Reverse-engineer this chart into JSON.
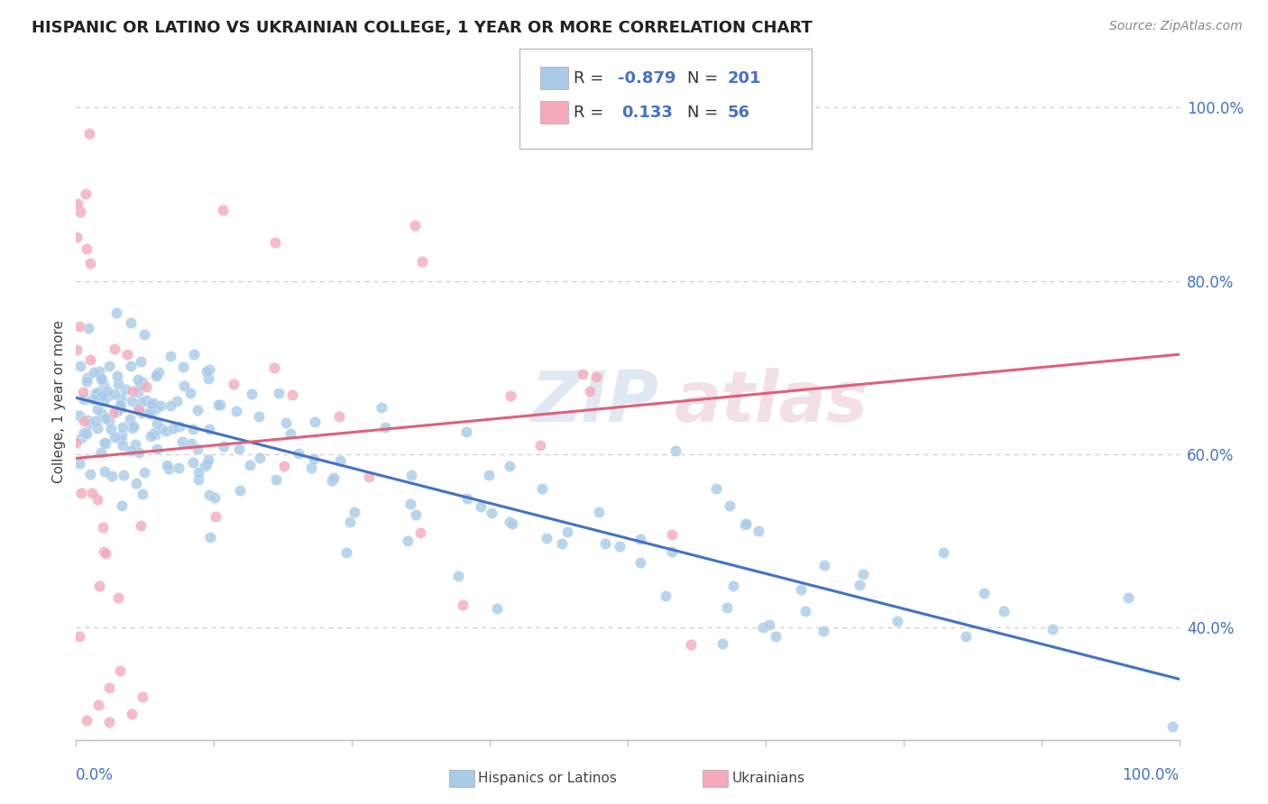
{
  "title": "HISPANIC OR LATINO VS UKRAINIAN COLLEGE, 1 YEAR OR MORE CORRELATION CHART",
  "source": "Source: ZipAtlas.com",
  "ylabel": "College, 1 year or more",
  "ytick_labels": [
    "40.0%",
    "60.0%",
    "80.0%",
    "100.0%"
  ],
  "ytick_values": [
    0.4,
    0.6,
    0.8,
    1.0
  ],
  "legend_blue_r": "-0.879",
  "legend_blue_n": "201",
  "legend_pink_r": "0.133",
  "legend_pink_n": "56",
  "blue_color": "#A8CBE8",
  "pink_color": "#F4AABB",
  "blue_line_color": "#4472C4",
  "pink_line_color": "#E0607A",
  "background_color": "#FFFFFF",
  "xlim": [
    0.0,
    1.0
  ],
  "ylim": [
    0.27,
    1.05
  ],
  "blue_intercept": 0.665,
  "blue_slope": -0.325,
  "pink_intercept": 0.595,
  "pink_slope": 0.12,
  "title_fontsize": 13,
  "source_fontsize": 10,
  "tick_label_fontsize": 12,
  "ylabel_fontsize": 11,
  "legend_fontsize": 13
}
